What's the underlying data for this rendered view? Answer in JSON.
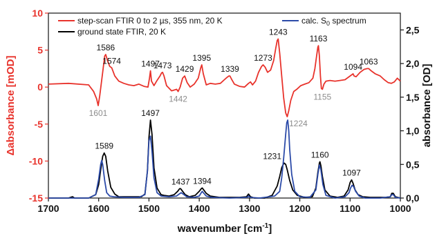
{
  "chart_data": {
    "type": "line",
    "xlabel": "wavenumber [cm-1]",
    "ylabel_left": "Δabsorbance [mOD]",
    "ylabel_right": "absorbance [OD]",
    "xlim": [
      1700,
      1000
    ],
    "ylim_left": [
      -15,
      10
    ],
    "ylim_right": [
      0,
      2.75
    ],
    "x_ticks": [
      1700,
      1600,
      1500,
      1400,
      1300,
      1200,
      1100,
      1000
    ],
    "y_ticks_left": [
      10,
      5,
      0,
      -5,
      -10,
      -15
    ],
    "y_ticks_right": [
      "0,0",
      "0,5",
      "1,0",
      "1,5",
      "2,0",
      "2,5"
    ],
    "y_ticks_right_values": [
      0,
      0.5,
      1.0,
      1.5,
      2.0,
      2.5
    ],
    "grid": false,
    "legend": [
      {
        "label": "step-scan FTIR 0 to 2 µs, 355 nm, 20 K",
        "color": "#e8322b"
      },
      {
        "label": "ground state FTIR, 20 K",
        "color": "#000000"
      },
      {
        "label_main": "calc. S",
        "label_sub": "0",
        "label_tail": " spectrum",
        "color": "#2b4aa8"
      }
    ],
    "series": [
      {
        "name": "step-scan FTIR 0 to 2 µs, 355 nm, 20 K",
        "axis": "left",
        "color": "#e8322b",
        "x": [
          1700,
          1660,
          1620,
          1610,
          1604,
          1601,
          1598,
          1592,
          1588,
          1586,
          1582,
          1578,
          1574,
          1568,
          1560,
          1550,
          1540,
          1530,
          1520,
          1510,
          1502,
          1499,
          1497,
          1495,
          1490,
          1484,
          1478,
          1475,
          1473,
          1470,
          1465,
          1455,
          1445,
          1442,
          1438,
          1433,
          1429,
          1424,
          1418,
          1410,
          1402,
          1397,
          1395,
          1392,
          1386,
          1378,
          1368,
          1358,
          1350,
          1345,
          1341,
          1339,
          1336,
          1330,
          1320,
          1310,
          1302,
          1298,
          1294,
          1288,
          1282,
          1276,
          1273,
          1269,
          1264,
          1258,
          1252,
          1248,
          1245,
          1243,
          1240,
          1236,
          1232,
          1228,
          1225,
          1222,
          1218,
          1212,
          1206,
          1198,
          1190,
          1182,
          1174,
          1170,
          1166,
          1164,
          1163,
          1161,
          1159,
          1157,
          1155,
          1152,
          1148,
          1140,
          1130,
          1120,
          1110,
          1100,
          1096,
          1094,
          1092,
          1088,
          1080,
          1072,
          1066,
          1063,
          1058,
          1050,
          1040,
          1032,
          1024,
          1018,
          1012,
          1006,
          1000
        ],
        "y": [
          0.4,
          0.5,
          0.3,
          -0.6,
          -1.6,
          -2.5,
          -1.2,
          2.0,
          4.2,
          4.4,
          3.5,
          2.8,
          2.6,
          1.5,
          0.8,
          0.5,
          0.3,
          0.2,
          0.4,
          0.1,
          0.0,
          1.2,
          2.2,
          0.8,
          0.2,
          0.9,
          1.5,
          1.9,
          2.0,
          1.5,
          0.2,
          -0.5,
          -0.3,
          -0.6,
          0.0,
          1.2,
          1.5,
          0.6,
          0.0,
          0.4,
          1.2,
          2.6,
          3.0,
          1.8,
          0.3,
          0.5,
          0.4,
          0.5,
          1.0,
          1.3,
          1.5,
          1.5,
          1.1,
          0.4,
          0.1,
          0.0,
          0.5,
          0.7,
          0.3,
          0.8,
          2.0,
          2.8,
          3.0,
          2.7,
          2.0,
          2.3,
          3.6,
          5.2,
          6.3,
          6.5,
          4.6,
          1.5,
          -1.5,
          -3.5,
          -4.0,
          -3.2,
          -1.8,
          -0.6,
          -0.3,
          0.2,
          0.4,
          0.6,
          1.2,
          2.5,
          4.5,
          5.4,
          5.6,
          4.2,
          1.5,
          -0.2,
          -0.3,
          0.4,
          0.8,
          0.9,
          0.8,
          0.9,
          1.0,
          1.5,
          1.7,
          1.8,
          1.5,
          1.4,
          2.0,
          2.4,
          2.5,
          2.5,
          2.2,
          1.8,
          1.5,
          1.0,
          0.6,
          0.5,
          0.7,
          1.2,
          0.8
        ]
      },
      {
        "name": "ground state FTIR, 20 K",
        "axis": "right",
        "color": "#000000",
        "x": [
          1700,
          1660,
          1652,
          1648,
          1640,
          1620,
          1606,
          1600,
          1596,
          1592,
          1589,
          1586,
          1582,
          1576,
          1568,
          1560,
          1545,
          1530,
          1515,
          1508,
          1503,
          1500,
          1497,
          1494,
          1490,
          1484,
          1476,
          1470,
          1460,
          1450,
          1443,
          1439,
          1437,
          1434,
          1428,
          1420,
          1408,
          1400,
          1396,
          1394,
          1391,
          1386,
          1378,
          1360,
          1340,
          1320,
          1306,
          1302,
          1298,
          1290,
          1270,
          1255,
          1245,
          1240,
          1236,
          1233,
          1231,
          1228,
          1225,
          1220,
          1214,
          1205,
          1190,
          1175,
          1168,
          1164,
          1161,
          1160,
          1158,
          1155,
          1150,
          1140,
          1125,
          1112,
          1104,
          1100,
          1097,
          1094,
          1090,
          1084,
          1075,
          1060,
          1040,
          1030,
          1020,
          1017,
          1014,
          1010,
          1000
        ],
        "y": [
          0.0,
          0.0,
          0.02,
          0.0,
          0.0,
          0.0,
          0.05,
          0.2,
          0.42,
          0.62,
          0.67,
          0.62,
          0.4,
          0.16,
          0.06,
          0.02,
          0.02,
          0.02,
          0.02,
          0.06,
          0.4,
          0.9,
          1.16,
          0.95,
          0.45,
          0.15,
          0.05,
          0.04,
          0.03,
          0.05,
          0.1,
          0.14,
          0.14,
          0.11,
          0.05,
          0.02,
          0.04,
          0.1,
          0.14,
          0.15,
          0.12,
          0.07,
          0.03,
          0.01,
          0.01,
          0.01,
          0.02,
          0.06,
          0.02,
          0.0,
          0.0,
          0.04,
          0.18,
          0.32,
          0.45,
          0.5,
          0.52,
          0.5,
          0.42,
          0.26,
          0.12,
          0.04,
          0.01,
          0.02,
          0.15,
          0.38,
          0.52,
          0.54,
          0.48,
          0.32,
          0.12,
          0.03,
          0.01,
          0.03,
          0.12,
          0.23,
          0.27,
          0.22,
          0.12,
          0.05,
          0.02,
          0.01,
          0.01,
          0.01,
          0.02,
          0.07,
          0.07,
          0.02,
          0.0
        ]
      },
      {
        "name": "calc. S0 spectrum",
        "axis": "right",
        "color": "#2b4aa8",
        "x": [
          1700,
          1620,
          1606,
          1600,
          1596,
          1594,
          1592,
          1588,
          1584,
          1578,
          1570,
          1550,
          1520,
          1508,
          1503,
          1500,
          1497,
          1494,
          1490,
          1484,
          1476,
          1460,
          1445,
          1440,
          1436,
          1432,
          1425,
          1410,
          1400,
          1396,
          1394,
          1392,
          1386,
          1375,
          1340,
          1305,
          1302,
          1299,
          1280,
          1250,
          1240,
          1236,
          1232,
          1228,
          1226,
          1224,
          1222,
          1220,
          1216,
          1210,
          1200,
          1180,
          1168,
          1164,
          1161,
          1158,
          1154,
          1148,
          1130,
          1110,
          1102,
          1099,
          1096,
          1093,
          1089,
          1082,
          1070,
          1040,
          1020,
          1017,
          1014,
          1010,
          1000
        ],
        "y": [
          0.0,
          0.0,
          0.05,
          0.28,
          0.5,
          0.56,
          0.5,
          0.26,
          0.08,
          0.03,
          0.02,
          0.01,
          0.01,
          0.05,
          0.4,
          0.85,
          0.92,
          0.7,
          0.3,
          0.08,
          0.03,
          0.02,
          0.03,
          0.06,
          0.08,
          0.06,
          0.02,
          0.01,
          0.03,
          0.08,
          0.1,
          0.08,
          0.03,
          0.01,
          0.0,
          0.01,
          0.03,
          0.01,
          0.0,
          0.03,
          0.1,
          0.3,
          0.6,
          0.95,
          1.12,
          1.16,
          1.0,
          0.72,
          0.35,
          0.1,
          0.02,
          0.01,
          0.12,
          0.35,
          0.49,
          0.42,
          0.2,
          0.04,
          0.0,
          0.02,
          0.08,
          0.15,
          0.19,
          0.17,
          0.1,
          0.03,
          0.0,
          0.0,
          0.02,
          0.05,
          0.05,
          0.01,
          0.0
        ]
      }
    ],
    "annotations": [
      {
        "text": "1601",
        "x": 1601,
        "y": -2.5,
        "axis": "left",
        "color": "#8c8c8c",
        "pos": "below"
      },
      {
        "text": "1586",
        "x": 1586,
        "y": 4.4,
        "axis": "left",
        "color": "#111111",
        "pos": "above"
      },
      {
        "text": "1574",
        "x": 1574,
        "y": 2.6,
        "axis": "left",
        "color": "#111111",
        "pos": "above"
      },
      {
        "text": "1497",
        "x": 1497,
        "y": 2.2,
        "axis": "left",
        "color": "#111111",
        "pos": "above"
      },
      {
        "text": "1473",
        "x": 1473,
        "y": 2.0,
        "axis": "left",
        "color": "#111111",
        "pos": "above"
      },
      {
        "text": "1429",
        "x": 1429,
        "y": 1.5,
        "axis": "left",
        "color": "#111111",
        "pos": "above"
      },
      {
        "text": "1442",
        "x": 1442,
        "y": -0.6,
        "axis": "left",
        "color": "#8c8c8c",
        "pos": "below"
      },
      {
        "text": "1395",
        "x": 1395,
        "y": 3.0,
        "axis": "left",
        "color": "#111111",
        "pos": "above"
      },
      {
        "text": "1339",
        "x": 1339,
        "y": 1.5,
        "axis": "left",
        "color": "#111111",
        "pos": "above"
      },
      {
        "text": "1273",
        "x": 1273,
        "y": 3.0,
        "axis": "left",
        "color": "#111111",
        "pos": "above"
      },
      {
        "text": "1243",
        "x": 1243,
        "y": 6.5,
        "axis": "left",
        "color": "#111111",
        "pos": "above"
      },
      {
        "text": "1224",
        "x": 1224,
        "y": -4.0,
        "axis": "left",
        "color": "#8c8c8c",
        "pos": "below-right"
      },
      {
        "text": "1163",
        "x": 1163,
        "y": 5.6,
        "axis": "left",
        "color": "#111111",
        "pos": "above"
      },
      {
        "text": "1155",
        "x": 1155,
        "y": -0.3,
        "axis": "left",
        "color": "#8c8c8c",
        "pos": "below"
      },
      {
        "text": "1094",
        "x": 1094,
        "y": 1.8,
        "axis": "left",
        "color": "#111111",
        "pos": "above"
      },
      {
        "text": "1063",
        "x": 1063,
        "y": 2.5,
        "axis": "left",
        "color": "#111111",
        "pos": "above"
      },
      {
        "text": "1589",
        "x": 1589,
        "y": 0.67,
        "axis": "right",
        "color": "#111111",
        "pos": "above"
      },
      {
        "text": "1497",
        "x": 1497,
        "y": 1.16,
        "axis": "right",
        "color": "#111111",
        "pos": "above"
      },
      {
        "text": "1437",
        "x": 1437,
        "y": 0.14,
        "axis": "right",
        "color": "#111111",
        "pos": "above"
      },
      {
        "text": "1394",
        "x": 1394,
        "y": 0.15,
        "axis": "right",
        "color": "#111111",
        "pos": "above"
      },
      {
        "text": "1231",
        "x": 1231,
        "y": 0.52,
        "axis": "right",
        "color": "#111111",
        "pos": "above-left"
      },
      {
        "text": "1160",
        "x": 1160,
        "y": 0.54,
        "axis": "right",
        "color": "#111111",
        "pos": "above"
      },
      {
        "text": "1097",
        "x": 1097,
        "y": 0.27,
        "axis": "right",
        "color": "#111111",
        "pos": "above"
      }
    ]
  }
}
